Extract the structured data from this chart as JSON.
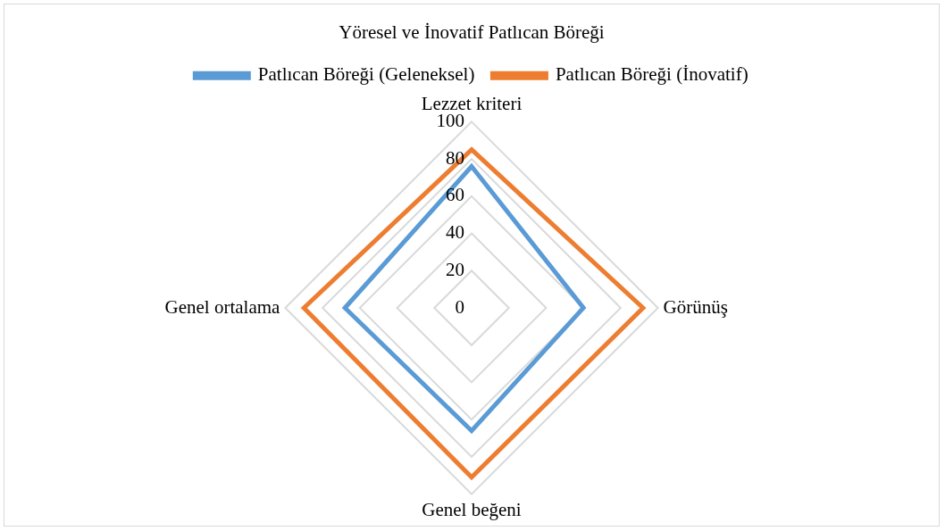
{
  "chart_data": {
    "type": "radar",
    "title": "Yöresel ve İnovatif Patlıcan Böreği",
    "categories": [
      "Lezzet kriteri",
      "Görünüş",
      "Genel beğeni",
      "Genel ortalama"
    ],
    "series": [
      {
        "name": "Patlıcan Böreği (Geleneksel)",
        "color": "#5b9bd5",
        "values": [
          76,
          60,
          66,
          68
        ]
      },
      {
        "name": "Patlıcan Böreği (İnovatif)",
        "color": "#ed7d31",
        "values": [
          85,
          92,
          91,
          90
        ]
      }
    ],
    "ylim": [
      0,
      100
    ],
    "yticks": [
      0,
      20,
      40,
      60,
      80,
      100
    ],
    "grid": true,
    "legend": "top",
    "marker": "none"
  }
}
